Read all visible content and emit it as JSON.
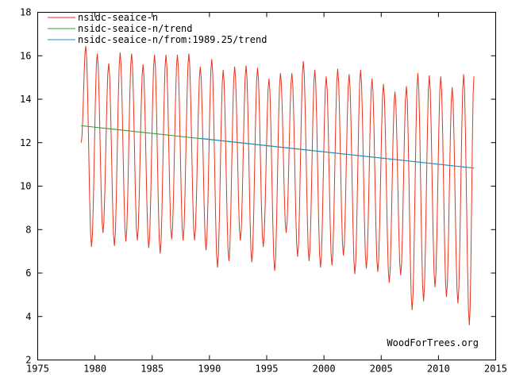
{
  "chart_data": {
    "type": "line",
    "title": "",
    "xlabel": "",
    "ylabel": "",
    "xlim": [
      1975,
      2015
    ],
    "ylim": [
      2,
      18
    ],
    "xticks": [
      "1975",
      "1980",
      "1985",
      "1990",
      "1995",
      "2000",
      "2005",
      "2010",
      "2015"
    ],
    "yticks": [
      "2",
      "4",
      "6",
      "8",
      "10",
      "12",
      "14",
      "16",
      "18"
    ],
    "grid": false,
    "legend_position": "top-left",
    "credit": "WoodForTrees.org",
    "series": [
      {
        "name": "nsidc-seaice-n",
        "color": "#e8321e",
        "style": "seasonal-oscillation",
        "x_start": 1978.8,
        "x_end": 2013.1,
        "first_value": 12.0,
        "last_value": 15.05,
        "annual_maxima": [
          {
            "x": 1979.2,
            "y": 16.45
          },
          {
            "x": 1980.2,
            "y": 16.1
          },
          {
            "x": 1981.2,
            "y": 15.65
          },
          {
            "x": 1982.2,
            "y": 16.15
          },
          {
            "x": 1983.2,
            "y": 16.1
          },
          {
            "x": 1984.2,
            "y": 15.6
          },
          {
            "x": 1985.2,
            "y": 16.05
          },
          {
            "x": 1986.2,
            "y": 16.05
          },
          {
            "x": 1987.2,
            "y": 16.05
          },
          {
            "x": 1988.2,
            "y": 16.1
          },
          {
            "x": 1989.2,
            "y": 15.5
          },
          {
            "x": 1990.2,
            "y": 15.85
          },
          {
            "x": 1991.2,
            "y": 15.35
          },
          {
            "x": 1992.2,
            "y": 15.5
          },
          {
            "x": 1993.2,
            "y": 15.55
          },
          {
            "x": 1994.2,
            "y": 15.45
          },
          {
            "x": 1995.2,
            "y": 14.95
          },
          {
            "x": 1996.2,
            "y": 15.2
          },
          {
            "x": 1997.2,
            "y": 15.2
          },
          {
            "x": 1998.2,
            "y": 15.75
          },
          {
            "x": 1999.2,
            "y": 15.35
          },
          {
            "x": 2000.2,
            "y": 15.05
          },
          {
            "x": 2001.2,
            "y": 15.4
          },
          {
            "x": 2002.2,
            "y": 15.15
          },
          {
            "x": 2003.2,
            "y": 15.35
          },
          {
            "x": 2004.2,
            "y": 14.95
          },
          {
            "x": 2005.2,
            "y": 14.7
          },
          {
            "x": 2006.2,
            "y": 14.35
          },
          {
            "x": 2007.2,
            "y": 14.6
          },
          {
            "x": 2008.2,
            "y": 15.2
          },
          {
            "x": 2009.2,
            "y": 15.1
          },
          {
            "x": 2010.2,
            "y": 15.05
          },
          {
            "x": 2011.2,
            "y": 14.55
          },
          {
            "x": 2012.2,
            "y": 15.15
          }
        ],
        "annual_minima": [
          {
            "x": 1979.7,
            "y": 7.2
          },
          {
            "x": 1980.7,
            "y": 7.85
          },
          {
            "x": 1981.7,
            "y": 7.25
          },
          {
            "x": 1982.7,
            "y": 7.45
          },
          {
            "x": 1983.7,
            "y": 7.5
          },
          {
            "x": 1984.7,
            "y": 7.15
          },
          {
            "x": 1985.7,
            "y": 6.9
          },
          {
            "x": 1986.7,
            "y": 7.55
          },
          {
            "x": 1987.7,
            "y": 7.5
          },
          {
            "x": 1988.7,
            "y": 7.5
          },
          {
            "x": 1989.7,
            "y": 7.05
          },
          {
            "x": 1990.7,
            "y": 6.25
          },
          {
            "x": 1991.7,
            "y": 6.55
          },
          {
            "x": 1992.7,
            "y": 7.5
          },
          {
            "x": 1993.7,
            "y": 6.5
          },
          {
            "x": 1994.7,
            "y": 7.2
          },
          {
            "x": 1995.7,
            "y": 6.1
          },
          {
            "x": 1996.7,
            "y": 7.85
          },
          {
            "x": 1997.7,
            "y": 6.75
          },
          {
            "x": 1998.7,
            "y": 6.55
          },
          {
            "x": 1999.7,
            "y": 6.25
          },
          {
            "x": 2000.7,
            "y": 6.35
          },
          {
            "x": 2001.7,
            "y": 6.8
          },
          {
            "x": 2002.7,
            "y": 5.95
          },
          {
            "x": 2003.7,
            "y": 6.2
          },
          {
            "x": 2004.7,
            "y": 6.05
          },
          {
            "x": 2005.7,
            "y": 5.55
          },
          {
            "x": 2006.7,
            "y": 5.9
          },
          {
            "x": 2007.7,
            "y": 4.3
          },
          {
            "x": 2008.7,
            "y": 4.7
          },
          {
            "x": 2009.7,
            "y": 5.35
          },
          {
            "x": 2010.7,
            "y": 4.9
          },
          {
            "x": 2011.7,
            "y": 4.6
          },
          {
            "x": 2012.7,
            "y": 3.6
          }
        ]
      },
      {
        "name": "nsidc-seaice-n/trend",
        "color": "#2ca02c",
        "x": [
          1978.8,
          2013.1
        ],
        "y": [
          12.78,
          10.83
        ]
      },
      {
        "name": "nsidc-seaice-n/from:1989.25/trend",
        "color": "#1f8fd6",
        "x": [
          1989.25,
          2013.1
        ],
        "y": [
          12.2,
          10.83
        ]
      }
    ]
  }
}
